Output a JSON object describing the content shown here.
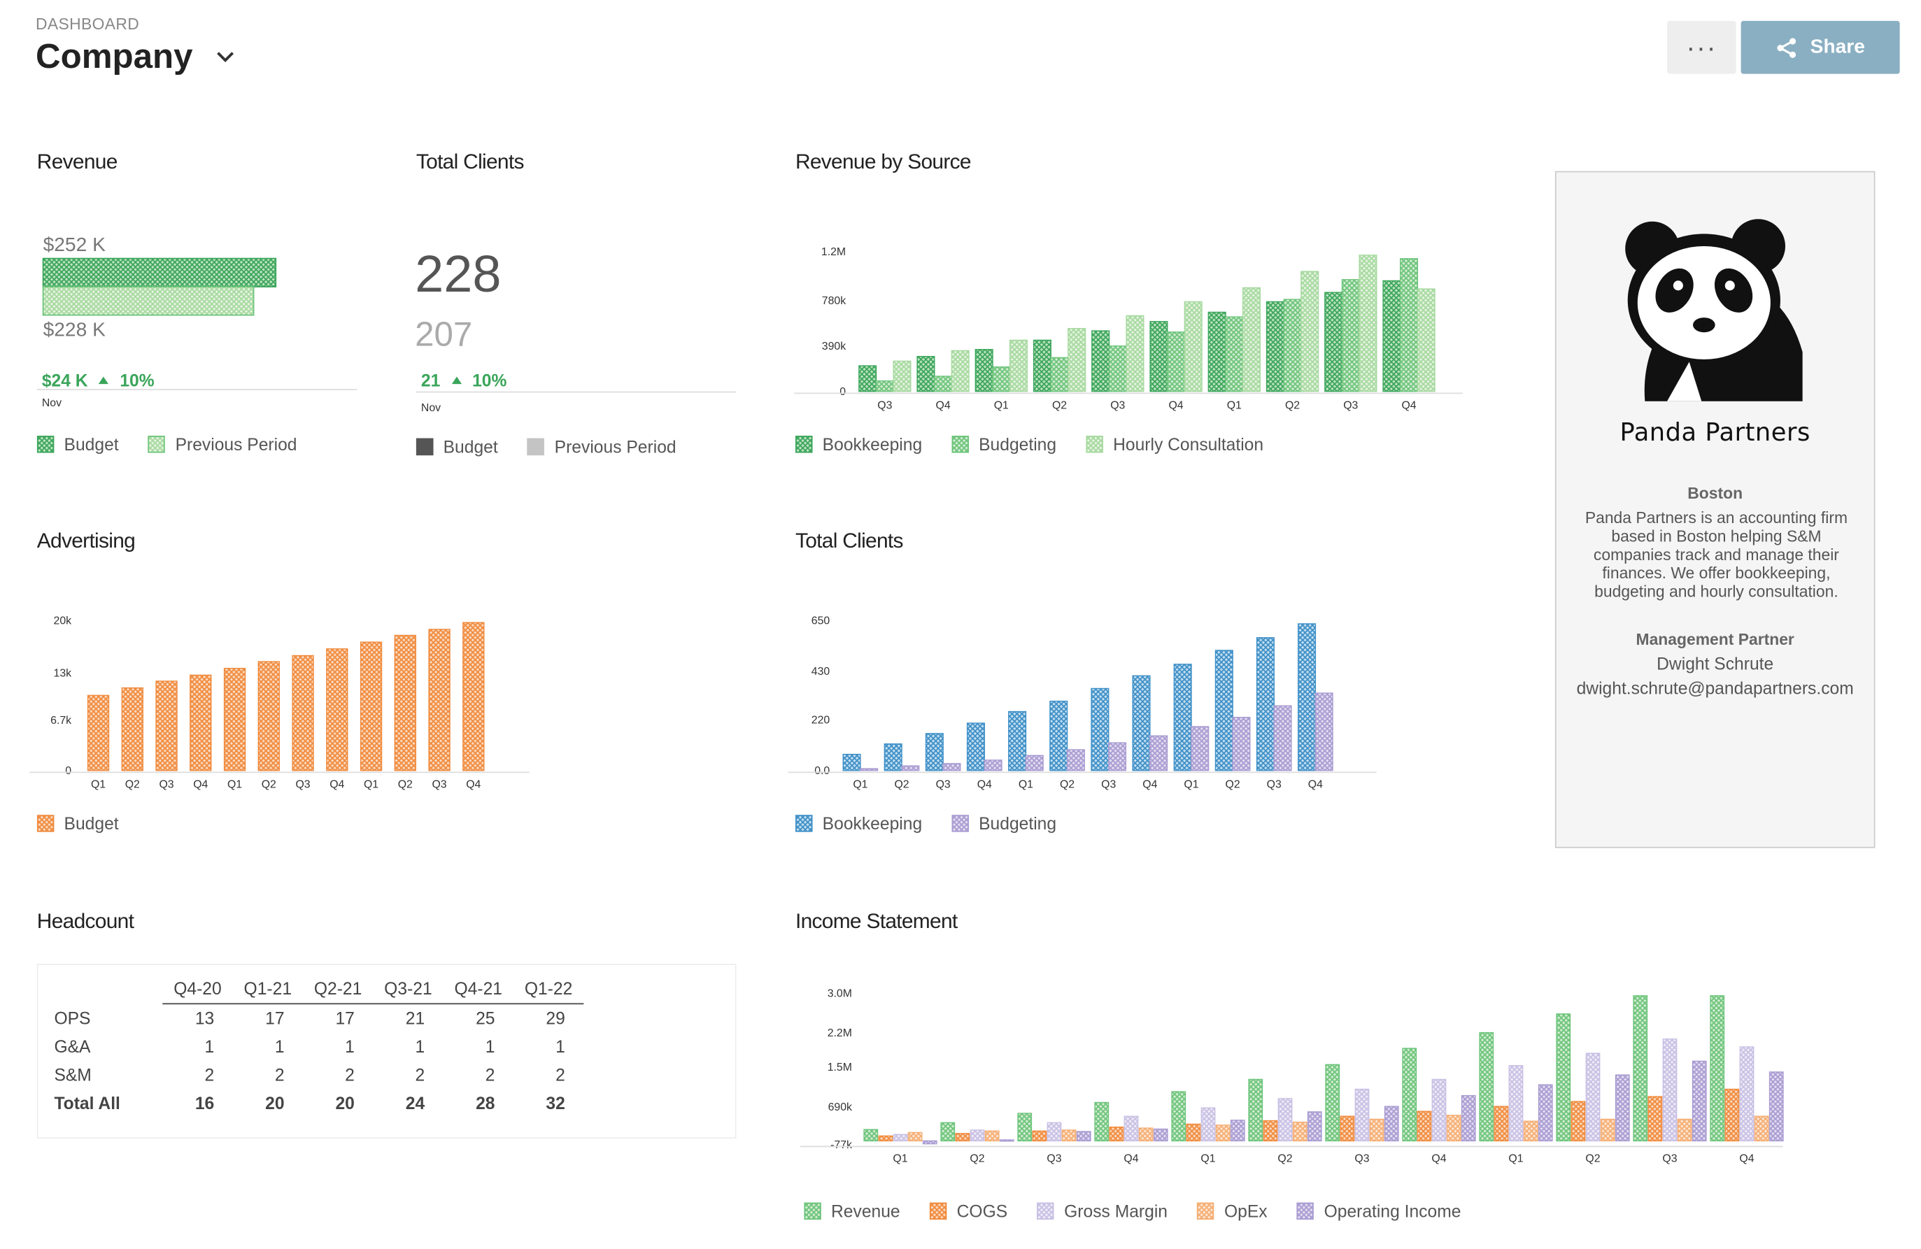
{
  "header": {
    "eyebrow": "DASHBOARD",
    "title": "Company",
    "more_label": "···",
    "share_label": "Share"
  },
  "colors": {
    "green_dark": "#3aa55a",
    "green_mid": "#6cc47a",
    "green_light": "#a6d99f",
    "orange": "#f08a3c",
    "blue": "#3d8fc7",
    "lavender": "#a89bd1",
    "lavender_light": "#c8c0e4",
    "gray_dark": "#555555",
    "gray_light": "#c4c4c4",
    "share_bg": "#8aafc2"
  },
  "revenue_widget": {
    "title": "Revenue",
    "current_label": "$252 K",
    "previous_label": "$228 K",
    "current_value": 252,
    "previous_value": 228,
    "delta": "$24 K",
    "delta_pct": "10%",
    "period": "Nov",
    "legend": [
      "Budget",
      "Previous Period"
    ]
  },
  "clients_kpi": {
    "title": "Total Clients",
    "current": "228",
    "previous": "207",
    "delta": "21",
    "delta_pct": "10%",
    "period": "Nov",
    "legend": [
      "Budget",
      "Previous Period"
    ]
  },
  "revenue_by_source": {
    "title": "Revenue by Source",
    "legend": [
      "Bookkeeping",
      "Budgeting",
      "Hourly Consultation"
    ]
  },
  "advertising": {
    "title": "Advertising",
    "legend": [
      "Budget"
    ]
  },
  "total_clients_chart": {
    "title": "Total Clients",
    "legend": [
      "Bookkeeping",
      "Budgeting"
    ]
  },
  "headcount": {
    "title": "Headcount",
    "columns": [
      "Q4-20",
      "Q1-21",
      "Q2-21",
      "Q3-21",
      "Q4-21",
      "Q1-22"
    ],
    "rows": [
      {
        "label": "OPS",
        "values": [
          "13",
          "17",
          "17",
          "21",
          "25",
          "29"
        ]
      },
      {
        "label": "G&A",
        "values": [
          "1",
          "1",
          "1",
          "1",
          "1",
          "1"
        ]
      },
      {
        "label": "S&M",
        "values": [
          "2",
          "2",
          "2",
          "2",
          "2",
          "2"
        ]
      },
      {
        "label": "Total All",
        "values": [
          "16",
          "20",
          "20",
          "24",
          "28",
          "32"
        ]
      }
    ]
  },
  "income_statement": {
    "title": "Income Statement",
    "legend": [
      "Revenue",
      "COGS",
      "Gross Margin",
      "OpEx",
      "Operating Income"
    ]
  },
  "company_card": {
    "firm_name": "Panda Partners",
    "city": "Boston",
    "description": "Panda Partners is an accounting firm based in Boston helping S&M companies track and manage their finances. We offer bookkeeping, budgeting and hourly consultation.",
    "role": "Management Partner",
    "person": "Dwight Schrute",
    "email": "dwight.schrute@pandapartners.com"
  },
  "chart_data": [
    {
      "id": "revenue_by_source",
      "type": "bar",
      "categories": [
        "Q3",
        "Q4",
        "Q1",
        "Q2",
        "Q3",
        "Q4",
        "Q1",
        "Q2",
        "Q3",
        "Q4"
      ],
      "ylim": [
        0,
        1300000
      ],
      "yticks": [
        0,
        390000,
        780000,
        1200000
      ],
      "ytick_labels": [
        "0",
        "390k",
        "780k",
        "1.2M"
      ],
      "series": [
        {
          "name": "Bookkeeping",
          "values": [
            220000,
            300000,
            360000,
            440000,
            520000,
            600000,
            680000,
            770000,
            850000,
            950000
          ]
        },
        {
          "name": "Budgeting",
          "values": [
            90000,
            130000,
            210000,
            290000,
            390000,
            510000,
            640000,
            790000,
            960000,
            1140000
          ]
        },
        {
          "name": "Hourly Consultation",
          "values": [
            260000,
            350000,
            440000,
            540000,
            650000,
            770000,
            890000,
            1030000,
            1170000,
            880000
          ]
        }
      ]
    },
    {
      "id": "advertising",
      "type": "bar",
      "categories": [
        "Q1",
        "Q2",
        "Q3",
        "Q4",
        "Q1",
        "Q2",
        "Q3",
        "Q4",
        "Q1",
        "Q2",
        "Q3",
        "Q4"
      ],
      "ylim": [
        0,
        20000
      ],
      "yticks": [
        0,
        6700,
        13000,
        20000
      ],
      "ytick_labels": [
        "0",
        "6.7k",
        "13k",
        "20k"
      ],
      "series": [
        {
          "name": "Budget",
          "values": [
            10000,
            11000,
            11900,
            12700,
            13600,
            14500,
            15300,
            16200,
            17100,
            18000,
            18800,
            19700
          ]
        }
      ]
    },
    {
      "id": "total_clients_chart",
      "type": "bar",
      "categories": [
        "Q1",
        "Q2",
        "Q3",
        "Q4",
        "Q1",
        "Q2",
        "Q3",
        "Q4",
        "Q1",
        "Q2",
        "Q3",
        "Q4"
      ],
      "ylim": [
        0,
        650
      ],
      "yticks": [
        0,
        220,
        430,
        650
      ],
      "ytick_labels": [
        "0.0",
        "220",
        "430",
        "650"
      ],
      "series": [
        {
          "name": "Bookkeeping",
          "values": [
            70,
            115,
            160,
            205,
            255,
            300,
            355,
            410,
            460,
            520,
            575,
            635
          ]
        },
        {
          "name": "Budgeting",
          "values": [
            8,
            20,
            30,
            45,
            65,
            90,
            120,
            150,
            190,
            230,
            280,
            335
          ]
        }
      ]
    },
    {
      "id": "income_statement",
      "type": "bar",
      "categories": [
        "Q1",
        "Q2",
        "Q3",
        "Q4",
        "Q1",
        "Q2",
        "Q3",
        "Q4",
        "Q1",
        "Q2",
        "Q3",
        "Q4"
      ],
      "ylim": [
        -77000,
        3000000
      ],
      "yticks": [
        -77000,
        690000,
        1500000,
        2200000,
        3000000
      ],
      "ytick_labels": [
        "-77k",
        "690k",
        "1.5M",
        "2.2M",
        "3.0M"
      ],
      "series": [
        {
          "name": "Revenue",
          "values": [
            230000,
            370000,
            560000,
            780000,
            1000000,
            1250000,
            1550000,
            1880000,
            2200000,
            2580000,
            2950000,
            2950000
          ]
        },
        {
          "name": "COGS",
          "values": [
            100000,
            150000,
            200000,
            280000,
            340000,
            410000,
            500000,
            600000,
            700000,
            800000,
            900000,
            1050000
          ]
        },
        {
          "name": "Gross Margin",
          "values": [
            130000,
            220000,
            370000,
            500000,
            670000,
            860000,
            1050000,
            1250000,
            1530000,
            1780000,
            2070000,
            1910000
          ]
        },
        {
          "name": "OpEx",
          "values": [
            170000,
            200000,
            220000,
            260000,
            320000,
            380000,
            440000,
            520000,
            400000,
            440000,
            440000,
            500000
          ]
        },
        {
          "name": "Operating Income",
          "values": [
            -60000,
            20000,
            190000,
            240000,
            420000,
            590000,
            700000,
            920000,
            1140000,
            1340000,
            1620000,
            1400000
          ]
        }
      ]
    }
  ]
}
